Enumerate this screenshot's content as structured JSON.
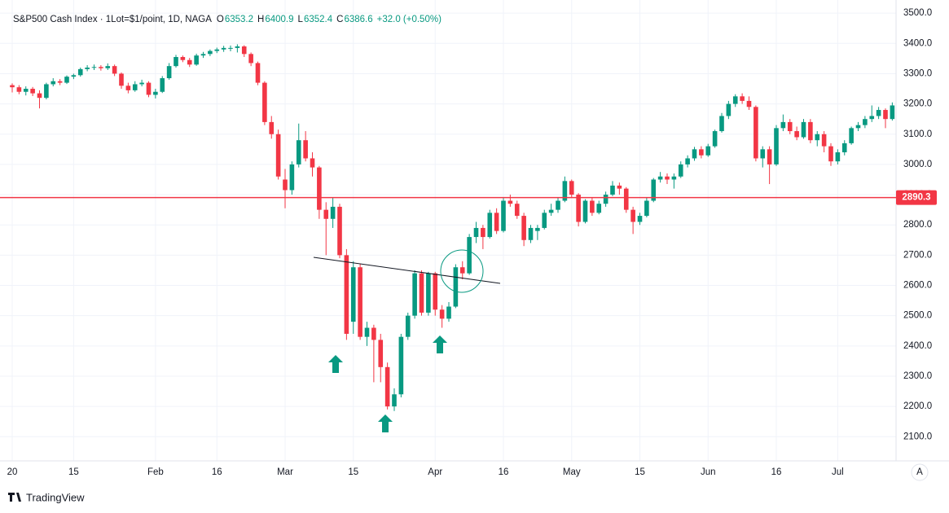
{
  "chart_data": {
    "type": "candlestick",
    "title": "S&P500 Cash Index · 1Lot=$1/point, 1D, NAGA",
    "legend": {
      "open_label": "O",
      "open": "6353.2",
      "high_label": "H",
      "high": "6400.9",
      "low_label": "L",
      "low": "6352.4",
      "close_label": "C",
      "close": "6386.6",
      "change": "+32.0 (+0.50%)"
    },
    "up_color": "#089981",
    "down_color": "#f23645",
    "ylim": [
      2020,
      3530
    ],
    "yticks": [
      {
        "value": 2100,
        "label": "2100.0"
      },
      {
        "value": 2200,
        "label": "2200.0"
      },
      {
        "value": 2300,
        "label": "2300.0"
      },
      {
        "value": 2400,
        "label": "2400.0"
      },
      {
        "value": 2500,
        "label": "2500.0"
      },
      {
        "value": 2600,
        "label": "2600.0"
      },
      {
        "value": 2700,
        "label": "2700.0"
      },
      {
        "value": 2800,
        "label": "2800.0"
      },
      {
        "value": 2900,
        "label": "2900.0"
      },
      {
        "value": 3000,
        "label": "3000.0"
      },
      {
        "value": 3100,
        "label": "3100.0"
      },
      {
        "value": 3200,
        "label": "3200.0"
      },
      {
        "value": 3300,
        "label": "3300.0"
      },
      {
        "value": 3400,
        "label": "3400.0"
      },
      {
        "value": 3500,
        "label": "3500.0"
      }
    ],
    "grid": true,
    "hline": {
      "value": 2890.3,
      "color": "#f23645"
    },
    "categories": [
      "20",
      null,
      null,
      null,
      null,
      null,
      null,
      null,
      null,
      "15",
      null,
      null,
      null,
      null,
      null,
      null,
      null,
      null,
      null,
      null,
      null,
      "Feb",
      null,
      null,
      null,
      null,
      null,
      null,
      null,
      null,
      "16",
      null,
      null,
      null,
      null,
      null,
      null,
      null,
      null,
      null,
      "Mar",
      null,
      null,
      null,
      null,
      null,
      null,
      null,
      null,
      null,
      "15",
      null,
      null,
      null,
      null,
      null,
      null,
      null,
      null,
      null,
      null,
      null,
      "Apr",
      null,
      null,
      null,
      null,
      null,
      null,
      null,
      null,
      null,
      "16",
      null,
      null,
      null,
      null,
      null,
      null,
      null,
      null,
      null,
      "May",
      null,
      null,
      null,
      null,
      null,
      null,
      null,
      null,
      null,
      "15",
      null,
      null,
      null,
      null,
      null,
      null,
      null,
      null,
      null,
      "Jun",
      null,
      null,
      null,
      null,
      null,
      null,
      null,
      null,
      null,
      "16",
      null,
      null,
      null,
      null,
      null,
      null,
      null,
      null,
      "Jul",
      null,
      null,
      null,
      null,
      null,
      null,
      null,
      null
    ],
    "values": [
      [
        3262,
        3268,
        3238,
        3255
      ],
      [
        3255,
        3262,
        3232,
        3240
      ],
      [
        3240,
        3258,
        3228,
        3250
      ],
      [
        3250,
        3256,
        3226,
        3235
      ],
      [
        3235,
        3245,
        3185,
        3220
      ],
      [
        3220,
        3270,
        3215,
        3265
      ],
      [
        3265,
        3285,
        3258,
        3275
      ],
      [
        3275,
        3282,
        3262,
        3270
      ],
      [
        3270,
        3294,
        3266,
        3290
      ],
      [
        3290,
        3300,
        3282,
        3295
      ],
      [
        3295,
        3320,
        3290,
        3315
      ],
      [
        3315,
        3328,
        3308,
        3320
      ],
      [
        3320,
        3330,
        3312,
        3322
      ],
      [
        3322,
        3328,
        3310,
        3318
      ],
      [
        3318,
        3334,
        3312,
        3325
      ],
      [
        3325,
        3330,
        3292,
        3300
      ],
      [
        3300,
        3304,
        3250,
        3260
      ],
      [
        3260,
        3270,
        3235,
        3245
      ],
      [
        3245,
        3275,
        3240,
        3265
      ],
      [
        3265,
        3280,
        3258,
        3270
      ],
      [
        3270,
        3275,
        3222,
        3230
      ],
      [
        3230,
        3250,
        3218,
        3240
      ],
      [
        3240,
        3292,
        3236,
        3285
      ],
      [
        3285,
        3335,
        3280,
        3325
      ],
      [
        3325,
        3362,
        3320,
        3355
      ],
      [
        3355,
        3360,
        3338,
        3345
      ],
      [
        3345,
        3352,
        3322,
        3330
      ],
      [
        3330,
        3366,
        3326,
        3360
      ],
      [
        3360,
        3372,
        3352,
        3365
      ],
      [
        3365,
        3380,
        3358,
        3375
      ],
      [
        3375,
        3386,
        3368,
        3380
      ],
      [
        3380,
        3392,
        3372,
        3385
      ],
      [
        3385,
        3393,
        3374,
        3385
      ],
      [
        3385,
        3397,
        3370,
        3390
      ],
      [
        3390,
        3394,
        3355,
        3365
      ],
      [
        3365,
        3370,
        3325,
        3335
      ],
      [
        3335,
        3340,
        3262,
        3270
      ],
      [
        3270,
        3275,
        3130,
        3140
      ],
      [
        3140,
        3160,
        3085,
        3100
      ],
      [
        3100,
        3115,
        2950,
        2960
      ],
      [
        2950,
        2985,
        2855,
        2915
      ],
      [
        2915,
        3010,
        2900,
        3000
      ],
      [
        3000,
        3135,
        2990,
        3080
      ],
      [
        3080,
        3110,
        3010,
        3020
      ],
      [
        3020,
        3040,
        2960,
        2990
      ],
      [
        2990,
        2995,
        2820,
        2850
      ],
      [
        2850,
        2875,
        2700,
        2820
      ],
      [
        2820,
        2890,
        2790,
        2860
      ],
      [
        2860,
        2870,
        2690,
        2700
      ],
      [
        2700,
        2720,
        2420,
        2440
      ],
      [
        2480,
        2680,
        2440,
        2660
      ],
      [
        2660,
        2670,
        2420,
        2430
      ],
      [
        2430,
        2480,
        2400,
        2460
      ],
      [
        2460,
        2470,
        2280,
        2420
      ],
      [
        2420,
        2440,
        2280,
        2330
      ],
      [
        2330,
        2345,
        2190,
        2200
      ],
      [
        2200,
        2260,
        2185,
        2240
      ],
      [
        2240,
        2440,
        2230,
        2430
      ],
      [
        2430,
        2510,
        2420,
        2500
      ],
      [
        2500,
        2650,
        2490,
        2640
      ],
      [
        2640,
        2650,
        2500,
        2510
      ],
      [
        2510,
        2645,
        2500,
        2640
      ],
      [
        2640,
        2645,
        2500,
        2520
      ],
      [
        2520,
        2535,
        2460,
        2490
      ],
      [
        2490,
        2545,
        2480,
        2530
      ],
      [
        2530,
        2670,
        2525,
        2660
      ],
      [
        2660,
        2680,
        2620,
        2640
      ],
      [
        2640,
        2770,
        2635,
        2760
      ],
      [
        2760,
        2810,
        2740,
        2790
      ],
      [
        2790,
        2800,
        2720,
        2760
      ],
      [
        2760,
        2850,
        2755,
        2840
      ],
      [
        2840,
        2855,
        2770,
        2780
      ],
      [
        2780,
        2890,
        2775,
        2880
      ],
      [
        2880,
        2900,
        2860,
        2870
      ],
      [
        2870,
        2880,
        2820,
        2830
      ],
      [
        2830,
        2840,
        2730,
        2750
      ],
      [
        2750,
        2800,
        2740,
        2790
      ],
      [
        2780,
        2800,
        2750,
        2790
      ],
      [
        2790,
        2850,
        2785,
        2840
      ],
      [
        2840,
        2870,
        2830,
        2850
      ],
      [
        2850,
        2890,
        2840,
        2880
      ],
      [
        2880,
        2960,
        2875,
        2945
      ],
      [
        2945,
        2950,
        2890,
        2900
      ],
      [
        2900,
        2905,
        2795,
        2810
      ],
      [
        2810,
        2885,
        2805,
        2880
      ],
      [
        2880,
        2890,
        2830,
        2840
      ],
      [
        2840,
        2880,
        2835,
        2870
      ],
      [
        2870,
        2910,
        2860,
        2900
      ],
      [
        2900,
        2945,
        2895,
        2930
      ],
      [
        2930,
        2940,
        2900,
        2920
      ],
      [
        2920,
        2925,
        2840,
        2850
      ],
      [
        2850,
        2860,
        2770,
        2810
      ],
      [
        2810,
        2840,
        2800,
        2830
      ],
      [
        2830,
        2890,
        2825,
        2880
      ],
      [
        2880,
        2955,
        2875,
        2950
      ],
      [
        2950,
        2975,
        2940,
        2960
      ],
      [
        2960,
        2970,
        2935,
        2950
      ],
      [
        2950,
        2970,
        2920,
        2960
      ],
      [
        2960,
        3010,
        2955,
        3000
      ],
      [
        3000,
        3030,
        2990,
        3020
      ],
      [
        3020,
        3058,
        3012,
        3050
      ],
      [
        3050,
        3060,
        3020,
        3030
      ],
      [
        3030,
        3068,
        3025,
        3060
      ],
      [
        3060,
        3115,
        3055,
        3110
      ],
      [
        3110,
        3170,
        3105,
        3160
      ],
      [
        3160,
        3210,
        3150,
        3200
      ],
      [
        3200,
        3232,
        3190,
        3225
      ],
      [
        3225,
        3235,
        3200,
        3210
      ],
      [
        3210,
        3225,
        3180,
        3190
      ],
      [
        3190,
        3195,
        3010,
        3020
      ],
      [
        3020,
        3060,
        2990,
        3050
      ],
      [
        3050,
        3060,
        2935,
        3000
      ],
      [
        3000,
        3130,
        2995,
        3120
      ],
      [
        3120,
        3165,
        3110,
        3140
      ],
      [
        3140,
        3150,
        3100,
        3110
      ],
      [
        3110,
        3125,
        3080,
        3090
      ],
      [
        3090,
        3150,
        3085,
        3140
      ],
      [
        3140,
        3150,
        3070,
        3080
      ],
      [
        3080,
        3110,
        3060,
        3100
      ],
      [
        3100,
        3110,
        3040,
        3060
      ],
      [
        3060,
        3070,
        2995,
        3010
      ],
      [
        3010,
        3050,
        3000,
        3040
      ],
      [
        3040,
        3080,
        3030,
        3070
      ],
      [
        3070,
        3125,
        3065,
        3120
      ],
      [
        3120,
        3140,
        3110,
        3130
      ],
      [
        3130,
        3160,
        3120,
        3150
      ],
      [
        3150,
        3195,
        3140,
        3160
      ],
      [
        3160,
        3190,
        3150,
        3180
      ],
      [
        3180,
        3185,
        3120,
        3150
      ],
      [
        3150,
        3205,
        3145,
        3195
      ]
    ],
    "brand": "TradingView",
    "auto_button": "A"
  }
}
